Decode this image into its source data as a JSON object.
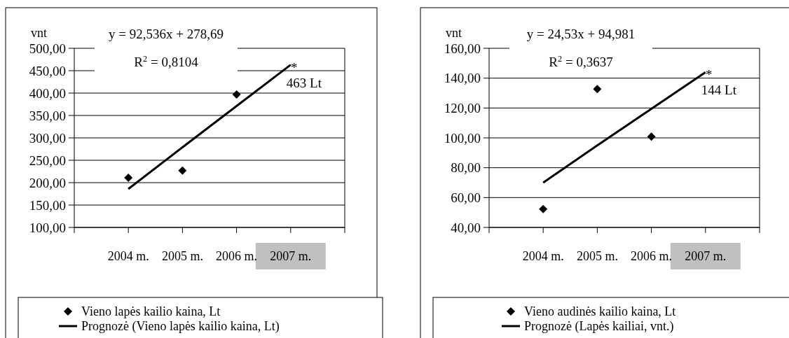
{
  "chart_data": [
    {
      "type": "scatter",
      "ylabel": "vnt",
      "categories": [
        "2004 m.",
        "2005 m.",
        "2006 m.",
        "2007 m."
      ],
      "series": [
        {
          "name": "Vieno lapės kailio kaina, Lt",
          "marker": "diamond",
          "color": "#000000",
          "values": [
            211,
            227,
            397,
            null
          ]
        },
        {
          "name": "Prognozė (Vieno lapės kailio kaina, Lt)",
          "type": "line",
          "marker": "none",
          "color": "#000000",
          "values": [
            186,
            279,
            371,
            463
          ]
        }
      ],
      "ylim": [
        100,
        500
      ],
      "yticks": [
        {
          "value": 100,
          "label": "100,00"
        },
        {
          "value": 150,
          "label": "150,00"
        },
        {
          "value": 200,
          "label": "200,00"
        },
        {
          "value": 250,
          "label": "250,00"
        },
        {
          "value": 300,
          "label": "300,00"
        },
        {
          "value": 350,
          "label": "350,00"
        },
        {
          "value": 400,
          "label": "400,00"
        },
        {
          "value": 450,
          "label": "450,00"
        },
        {
          "value": 500,
          "label": "500,00"
        }
      ],
      "grid": "y",
      "legend": "bottom",
      "annotations": [
        "y = 92,536x + 278,69",
        "R$^{2}$ = 0,8104",
        {
          "text": "*",
          "x": "2007 m.",
          "y": 463
        },
        {
          "text": "463 Lt",
          "x": "2007 m.",
          "y": 463
        }
      ]
    },
    {
      "type": "scatter",
      "ylabel": "vnt",
      "categories": [
        "2004 m.",
        "2005 m.",
        "2006 m.",
        "2007 m."
      ],
      "series": [
        {
          "name": "Vieno audinės kailio kaina, Lt",
          "marker": "diamond",
          "color": "#000000",
          "values": [
            52.3,
            132.7,
            100.8,
            null
          ]
        },
        {
          "name": "Prognozė (Lapės kailiai, vnt.)",
          "type": "line",
          "marker": "none",
          "color": "#000000",
          "values": [
            70,
            95,
            119.5,
            144
          ]
        }
      ],
      "ylim": [
        40,
        160
      ],
      "yticks": [
        {
          "value": 40,
          "label": "40,00"
        },
        {
          "value": 60,
          "label": "60,00"
        },
        {
          "value": 80,
          "label": "80,00"
        },
        {
          "value": 100,
          "label": "100,00"
        },
        {
          "value": 120,
          "label": "120,00"
        },
        {
          "value": 140,
          "label": "140,00"
        },
        {
          "value": 160,
          "label": "160,00"
        }
      ],
      "grid": "y",
      "legend": "bottom",
      "annotations": [
        "y = 24,53x + 94,981",
        "R$^{2}$ = 0,3637",
        {
          "text": "*",
          "x": "2007 m.",
          "y": 144
        },
        {
          "text": "144 Lt",
          "x": "2007 m.",
          "y": 144
        }
      ]
    }
  ]
}
